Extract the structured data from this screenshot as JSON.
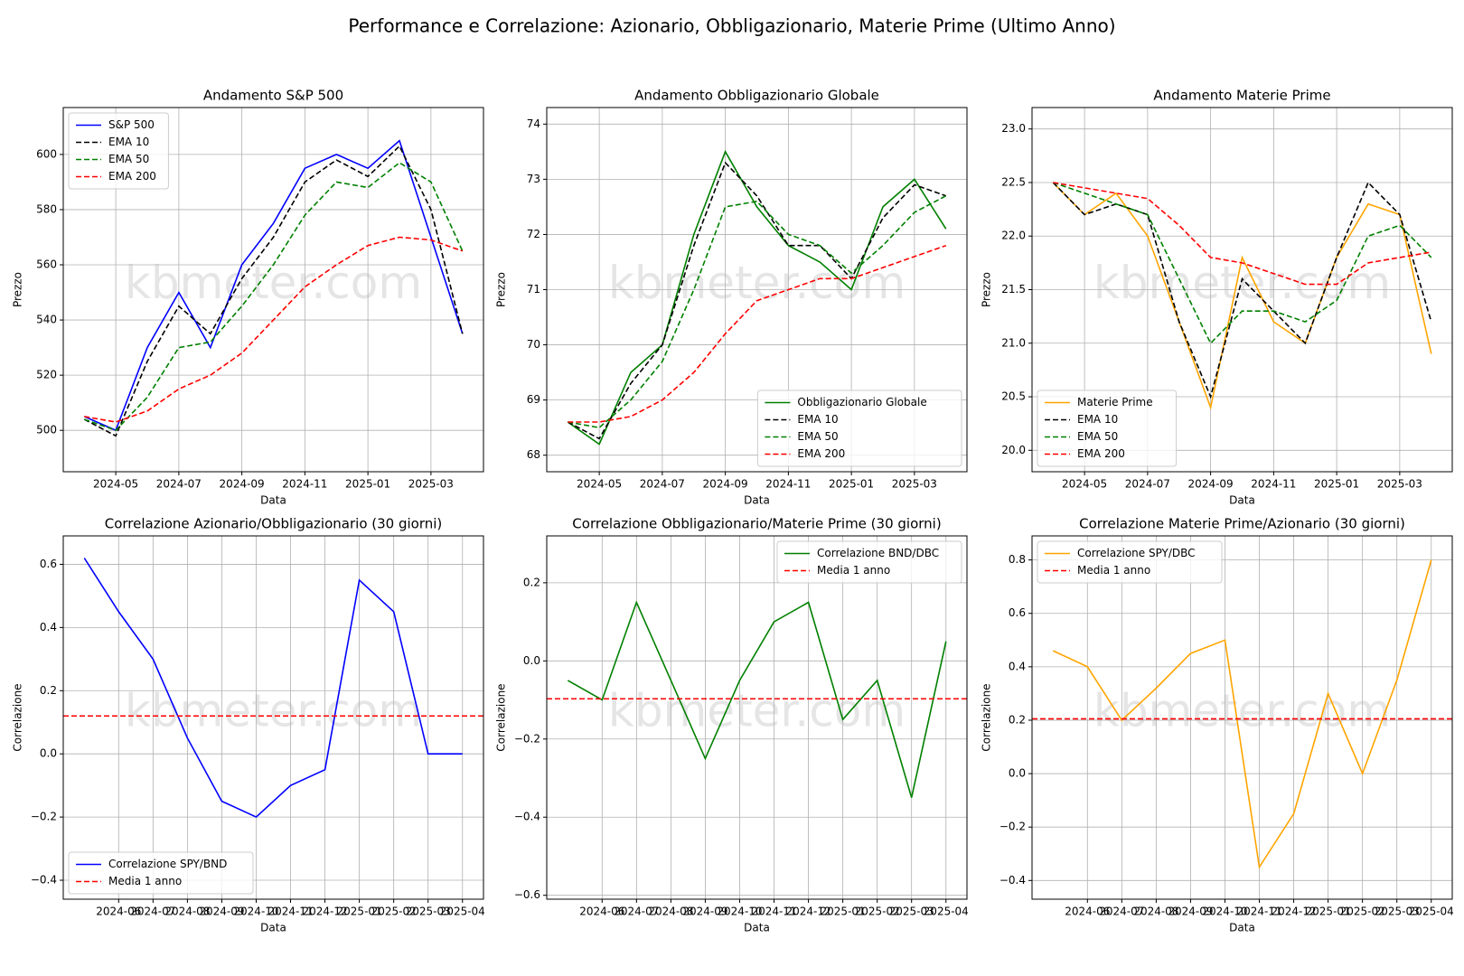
{
  "title": "Performance e Correlazione: Azionario, Obbligazionario, Materie Prime (Ultimo Anno)",
  "chart_data": [
    {
      "type": "line",
      "title": "Andamento S&P 500",
      "xlabel": "Data",
      "ylabel": "Prezzo",
      "watermark": "kbmeter.com",
      "x": [
        "2024-04",
        "2024-05",
        "2024-06",
        "2024-07",
        "2024-08",
        "2024-09",
        "2024-10",
        "2024-11",
        "2024-12",
        "2025-01",
        "2025-02",
        "2025-03",
        "2025-04"
      ],
      "xlim": [
        "2024-04",
        "2025-04"
      ],
      "xticks": [
        "2024-05",
        "2024-07",
        "2024-09",
        "2024-11",
        "2025-01",
        "2025-03"
      ],
      "ylim": [
        485,
        617
      ],
      "yticks": [
        500,
        520,
        540,
        560,
        580,
        600
      ],
      "grid": true,
      "legend": "upper left",
      "series": [
        {
          "name": "S&P 500",
          "color": "#0000ff",
          "linestyle": "solid",
          "values": [
            505,
            500,
            530,
            550,
            530,
            560,
            575,
            595,
            600,
            595,
            605,
            570,
            535
          ]
        },
        {
          "name": "EMA 10",
          "color": "#000000",
          "linestyle": "dashed",
          "values": [
            504,
            498,
            525,
            545,
            535,
            555,
            570,
            590,
            598,
            592,
            603,
            580,
            535
          ]
        },
        {
          "name": "EMA 50",
          "color": "#008000",
          "linestyle": "dashed",
          "values": [
            504,
            500,
            512,
            530,
            532,
            545,
            560,
            578,
            590,
            588,
            597,
            590,
            565
          ]
        },
        {
          "name": "EMA 200",
          "color": "#ff0000",
          "linestyle": "dashed",
          "values": [
            505,
            503,
            507,
            515,
            520,
            528,
            540,
            552,
            560,
            567,
            570,
            569,
            565
          ]
        }
      ]
    },
    {
      "type": "line",
      "title": "Andamento Obbligazionario Globale",
      "xlabel": "Data",
      "ylabel": "Prezzo",
      "watermark": "kbmeter.com",
      "x": [
        "2024-04",
        "2024-05",
        "2024-06",
        "2024-07",
        "2024-08",
        "2024-09",
        "2024-10",
        "2024-11",
        "2024-12",
        "2025-01",
        "2025-02",
        "2025-03",
        "2025-04"
      ],
      "xlim": [
        "2024-04",
        "2025-04"
      ],
      "xticks": [
        "2024-05",
        "2024-07",
        "2024-09",
        "2024-11",
        "2025-01",
        "2025-03"
      ],
      "ylim": [
        67.7,
        74.3
      ],
      "yticks": [
        68,
        69,
        70,
        71,
        72,
        73,
        74
      ],
      "grid": true,
      "legend": "lower right",
      "series": [
        {
          "name": "Obbligazionario Globale",
          "color": "#008000",
          "linestyle": "solid",
          "values": [
            68.6,
            68.2,
            69.5,
            70.0,
            72.0,
            73.5,
            72.5,
            71.8,
            71.5,
            71.0,
            72.5,
            73.0,
            72.1
          ]
        },
        {
          "name": "EMA 10",
          "color": "#000000",
          "linestyle": "dashed",
          "values": [
            68.6,
            68.3,
            69.3,
            70.0,
            71.8,
            73.3,
            72.7,
            71.8,
            71.8,
            71.2,
            72.3,
            72.9,
            72.7
          ]
        },
        {
          "name": "EMA 50",
          "color": "#008000",
          "linestyle": "dashed",
          "values": [
            68.6,
            68.5,
            69.0,
            69.7,
            71.0,
            72.5,
            72.6,
            72.0,
            71.8,
            71.3,
            71.8,
            72.4,
            72.7
          ]
        },
        {
          "name": "EMA 200",
          "color": "#ff0000",
          "linestyle": "dashed",
          "values": [
            68.6,
            68.6,
            68.7,
            69.0,
            69.5,
            70.2,
            70.8,
            71.0,
            71.2,
            71.2,
            71.4,
            71.6,
            71.8
          ]
        }
      ]
    },
    {
      "type": "line",
      "title": "Andamento Materie Prime",
      "xlabel": "Data",
      "ylabel": "Prezzo",
      "watermark": "kbmeter.com",
      "x": [
        "2024-04",
        "2024-05",
        "2024-06",
        "2024-07",
        "2024-08",
        "2024-09",
        "2024-10",
        "2024-11",
        "2024-12",
        "2025-01",
        "2025-02",
        "2025-03",
        "2025-04"
      ],
      "xlim": [
        "2024-04",
        "2025-04"
      ],
      "xticks": [
        "2024-05",
        "2024-07",
        "2024-09",
        "2024-11",
        "2025-01",
        "2025-03"
      ],
      "ylim": [
        19.8,
        23.2
      ],
      "yticks": [
        {
          "value": 20,
          "label": "20.0"
        },
        20.5,
        {
          "value": 21,
          "label": "21.0"
        },
        21.5,
        {
          "value": 22,
          "label": "22.0"
        },
        22.5,
        {
          "value": 23,
          "label": "23.0"
        }
      ],
      "grid": true,
      "legend": "lower left",
      "series": [
        {
          "name": "Materie Prime",
          "color": "#ffa500",
          "linestyle": "solid",
          "values": [
            22.5,
            22.2,
            22.4,
            22.0,
            21.2,
            20.4,
            21.8,
            21.2,
            21.0,
            21.8,
            22.3,
            22.2,
            20.9
          ]
        },
        {
          "name": "EMA 10",
          "color": "#000000",
          "linestyle": "dashed",
          "values": [
            22.5,
            22.2,
            22.3,
            22.2,
            21.2,
            20.5,
            21.6,
            21.3,
            21.0,
            21.8,
            22.5,
            22.2,
            21.2
          ]
        },
        {
          "name": "EMA 50",
          "color": "#008000",
          "linestyle": "dashed",
          "values": [
            22.5,
            22.4,
            22.3,
            22.2,
            21.6,
            21.0,
            21.3,
            21.3,
            21.2,
            21.4,
            22.0,
            22.1,
            21.8
          ]
        },
        {
          "name": "EMA 200",
          "color": "#ff0000",
          "linestyle": "dashed",
          "values": [
            22.5,
            22.45,
            22.4,
            22.35,
            22.1,
            21.8,
            21.75,
            21.65,
            21.55,
            21.55,
            21.75,
            21.8,
            21.85
          ]
        }
      ]
    },
    {
      "type": "line",
      "title": "Correlazione Azionario/Obbligazionario (30 giorni)",
      "xlabel": "Data",
      "ylabel": "Correlazione",
      "watermark": "kbmeter.com",
      "x": [
        "2024-05",
        "2024-06",
        "2024-07",
        "2024-08",
        "2024-09",
        "2024-10",
        "2024-11",
        "2024-12",
        "2025-01",
        "2025-02",
        "2025-03",
        "2025-04"
      ],
      "xlim": [
        "2024-05",
        "2025-04"
      ],
      "xticks": [
        "2024-06",
        "2024-07",
        "2024-08",
        "2024-09",
        "2024-10",
        "2024-11",
        "2024-12",
        "2025-01",
        "2025-02",
        "2025-03",
        "2025-04"
      ],
      "ylim": [
        -0.46,
        0.69
      ],
      "yticks": [
        {
          "value": -0.4,
          "label": "−0.4"
        },
        {
          "value": -0.2,
          "label": "−0.2"
        },
        {
          "value": 0,
          "label": "0.0"
        },
        0.2,
        0.4,
        0.6
      ],
      "grid": true,
      "legend": "lower left",
      "series": [
        {
          "name": "Correlazione SPY/BND",
          "color": "#0000ff",
          "linestyle": "solid",
          "values": [
            0.62,
            0.45,
            0.3,
            0.05,
            -0.15,
            -0.2,
            -0.1,
            -0.05,
            0.55,
            0.45,
            0.0,
            0.0
          ]
        },
        {
          "name": "Media 1 anno",
          "color": "#ff0000",
          "linestyle": "dashed",
          "value": 0.12
        }
      ]
    },
    {
      "type": "line",
      "title": "Correlazione Obbligazionario/Materie Prime (30 giorni)",
      "xlabel": "Data",
      "ylabel": "Correlazione",
      "watermark": "kbmeter.com",
      "x": [
        "2024-05",
        "2024-06",
        "2024-07",
        "2024-08",
        "2024-09",
        "2024-10",
        "2024-11",
        "2024-12",
        "2025-01",
        "2025-02",
        "2025-03",
        "2025-04"
      ],
      "xlim": [
        "2024-05",
        "2025-04"
      ],
      "xticks": [
        "2024-06",
        "2024-07",
        "2024-08",
        "2024-09",
        "2024-10",
        "2024-11",
        "2024-12",
        "2025-01",
        "2025-02",
        "2025-03",
        "2025-04"
      ],
      "ylim": [
        -0.61,
        0.32
      ],
      "yticks": [
        {
          "value": -0.6,
          "label": "−0.6"
        },
        {
          "value": -0.4,
          "label": "−0.4"
        },
        {
          "value": -0.2,
          "label": "−0.2"
        },
        {
          "value": 0,
          "label": "0.0"
        },
        0.2
      ],
      "grid": true,
      "legend": "upper right",
      "series": [
        {
          "name": "Correlazione BND/DBC",
          "color": "#008000",
          "linestyle": "solid",
          "values": [
            -0.05,
            -0.1,
            0.15,
            -0.05,
            -0.25,
            -0.05,
            0.1,
            0.15,
            -0.15,
            -0.05,
            -0.35,
            0.05
          ]
        },
        {
          "name": "Media 1 anno",
          "color": "#ff0000",
          "linestyle": "dashed",
          "value": -0.097
        }
      ]
    },
    {
      "type": "line",
      "title": "Correlazione Materie Prime/Azionario (30 giorni)",
      "xlabel": "Data",
      "ylabel": "Correlazione",
      "watermark": "kbmeter.com",
      "x": [
        "2024-05",
        "2024-06",
        "2024-07",
        "2024-08",
        "2024-09",
        "2024-10",
        "2024-11",
        "2024-12",
        "2025-01",
        "2025-02",
        "2025-03",
        "2025-04"
      ],
      "xlim": [
        "2024-05",
        "2025-04"
      ],
      "xticks": [
        "2024-06",
        "2024-07",
        "2024-08",
        "2024-09",
        "2024-10",
        "2024-11",
        "2024-12",
        "2025-01",
        "2025-02",
        "2025-03",
        "2025-04"
      ],
      "ylim": [
        -0.47,
        0.89
      ],
      "yticks": [
        {
          "value": -0.4,
          "label": "−0.4"
        },
        {
          "value": -0.2,
          "label": "−0.2"
        },
        {
          "value": 0,
          "label": "0.0"
        },
        0.2,
        0.4,
        0.6,
        0.8
      ],
      "grid": true,
      "legend": "upper left",
      "series": [
        {
          "name": "Correlazione SPY/DBC",
          "color": "#ffa500",
          "linestyle": "solid",
          "values": [
            0.46,
            0.4,
            0.2,
            0.32,
            0.45,
            0.5,
            -0.35,
            -0.15,
            0.3,
            0.0,
            0.35,
            0.8
          ]
        },
        {
          "name": "Media 1 anno",
          "color": "#ff0000",
          "linestyle": "dashed",
          "value": 0.205
        }
      ]
    }
  ]
}
